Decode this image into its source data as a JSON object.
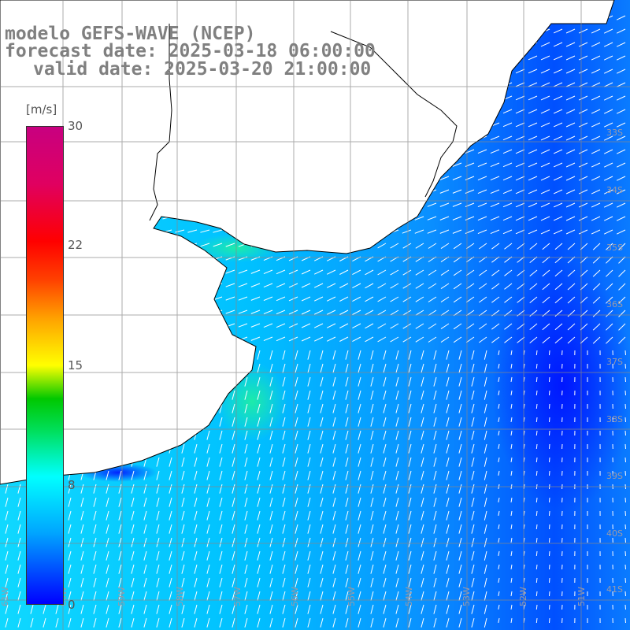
{
  "title": {
    "line1": "modelo GEFS-WAVE (NCEP)",
    "line2": "forecast date: 2025-03-18 06:00:00",
    "line3": "valid date: 2025-03-20 21:00:00"
  },
  "colorbar": {
    "unit": "[m/s]",
    "ticks": [
      "30",
      "22",
      "15",
      "8",
      "0"
    ],
    "range": [
      0,
      30
    ]
  },
  "grid": {
    "lat_labels": [
      "33S",
      "34S",
      "35S",
      "36S",
      "37S",
      "38S",
      "39S",
      "40S",
      "41S"
    ],
    "lon_labels": [
      "61W",
      "60W",
      "59W",
      "58W",
      "57W",
      "56W",
      "55W",
      "54W",
      "53W",
      "52W",
      "51W"
    ],
    "lat_range": [
      -41.5,
      -31.5
    ],
    "lon_range": [
      -61.5,
      -50.7
    ]
  },
  "colors": {
    "ocean_low": "#0000ff",
    "ocean_mid": "#00c0ff",
    "ocean_high": "#00ffd0",
    "arrows": "#ffffff",
    "land": "#ffffff",
    "coastline": "#000000",
    "gridline": "#888888",
    "title_text": "#808080"
  }
}
